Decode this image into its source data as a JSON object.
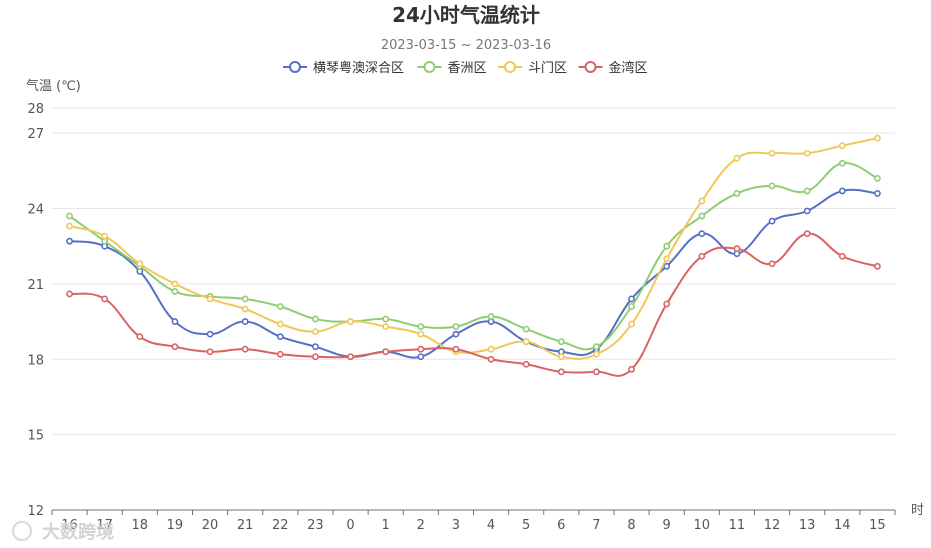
{
  "chart_data": {
    "type": "line",
    "title": "24小时气温统计",
    "subtitle": "2023-03-15 ~ 2023-03-16",
    "ylabel": "气温 (℃)",
    "xlabel": "时",
    "ylim": [
      12,
      28
    ],
    "yticks": [
      12,
      15,
      18,
      21,
      24,
      27,
      28
    ],
    "categories": [
      "16",
      "17",
      "18",
      "19",
      "20",
      "21",
      "22",
      "23",
      "0",
      "1",
      "2",
      "3",
      "4",
      "5",
      "6",
      "7",
      "8",
      "9",
      "10",
      "11",
      "12",
      "13",
      "14",
      "15"
    ],
    "legend_position": "top-center",
    "grid": true,
    "series": [
      {
        "name": "横琴粤澳深合区",
        "color": "#5470c6",
        "values": [
          22.7,
          22.5,
          21.5,
          19.5,
          19.0,
          19.5,
          18.9,
          18.5,
          18.1,
          18.3,
          18.1,
          19.0,
          19.5,
          18.7,
          18.3,
          18.4,
          20.4,
          21.7,
          23.0,
          22.2,
          23.5,
          23.9,
          24.7,
          24.6
        ]
      },
      {
        "name": "香洲区",
        "color": "#91cc75",
        "values": [
          23.7,
          22.7,
          21.7,
          20.7,
          20.5,
          20.4,
          20.1,
          19.6,
          19.5,
          19.6,
          19.3,
          19.3,
          19.7,
          19.2,
          18.7,
          18.5,
          20.1,
          22.5,
          23.7,
          24.6,
          24.9,
          24.7,
          25.8,
          25.2
        ]
      },
      {
        "name": "斗门区",
        "color": "#f0c75a",
        "values": [
          23.3,
          22.9,
          21.8,
          21.0,
          20.4,
          20.0,
          19.4,
          19.1,
          19.5,
          19.3,
          19.0,
          18.3,
          18.4,
          18.7,
          18.1,
          18.2,
          19.4,
          22.0,
          24.3,
          26.0,
          26.2,
          26.2,
          26.5,
          26.8
        ]
      },
      {
        "name": "金湾区",
        "color": "#d96363",
        "values": [
          20.6,
          20.4,
          18.9,
          18.5,
          18.3,
          18.4,
          18.2,
          18.1,
          18.1,
          18.3,
          18.4,
          18.4,
          18.0,
          17.8,
          17.5,
          17.5,
          17.6,
          20.2,
          22.1,
          22.4,
          21.8,
          23.0,
          22.1,
          21.7
        ]
      }
    ]
  },
  "watermark": "大数跨境"
}
